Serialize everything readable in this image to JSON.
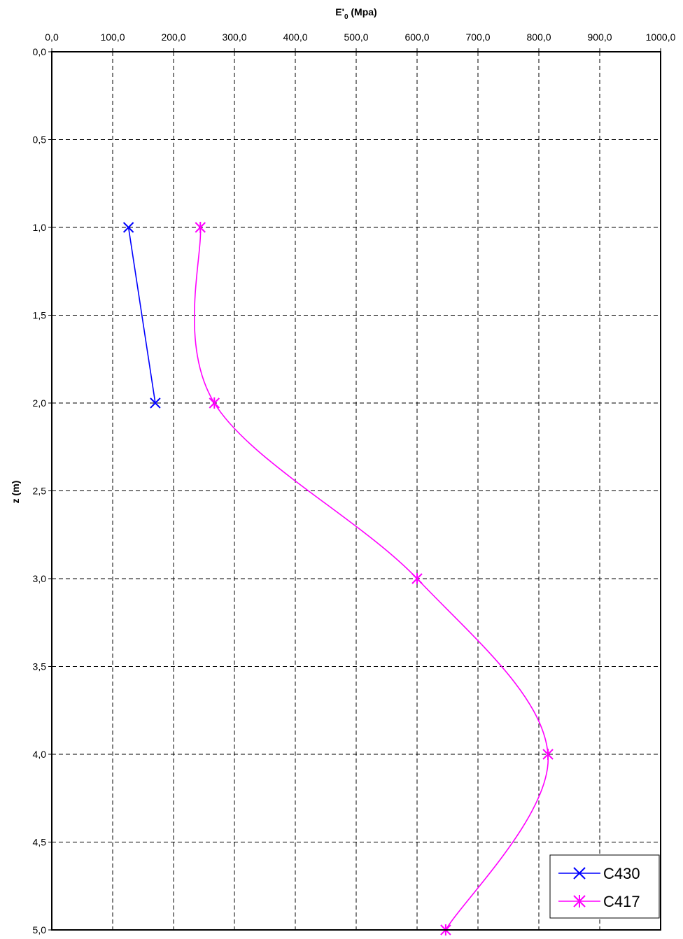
{
  "chart_data": {
    "type": "line",
    "title": "",
    "xlabel": "E'0 (Mpa)",
    "xlabel_main": "E'",
    "xlabel_sub": "0",
    "xlabel_rest": " (Mpa)",
    "ylabel": "z (m)",
    "x_axis_position": "top",
    "y_axis_inverted": true,
    "xlim": [
      0,
      1000
    ],
    "ylim": [
      0,
      5
    ],
    "x_ticks": [
      0,
      100,
      200,
      300,
      400,
      500,
      600,
      700,
      800,
      900,
      1000
    ],
    "x_tick_labels": [
      "0,0",
      "100,0",
      "200,0",
      "300,0",
      "400,0",
      "500,0",
      "600,0",
      "700,0",
      "800,0",
      "900,0",
      "1000,0"
    ],
    "y_ticks": [
      0,
      0.5,
      1,
      1.5,
      2,
      2.5,
      3,
      3.5,
      4,
      4.5,
      5
    ],
    "y_tick_labels": [
      "0,0",
      "0,5",
      "1,0",
      "1,5",
      "2,0",
      "2,5",
      "3,0",
      "3,5",
      "4,0",
      "4,5",
      "5,0"
    ],
    "grid": true,
    "grid_style": "dashed",
    "legend_position": "bottom-right",
    "series": [
      {
        "name": "C430",
        "color": "#0000ff",
        "marker": "x",
        "smooth": false,
        "points": [
          [
            126,
            1.0
          ],
          [
            170,
            2.0
          ]
        ]
      },
      {
        "name": "C417",
        "color": "#ff00ff",
        "marker": "asterisk",
        "smooth": true,
        "points": [
          [
            244,
            1.0
          ],
          [
            267,
            2.0
          ],
          [
            600,
            3.0
          ],
          [
            815,
            4.0
          ],
          [
            647,
            5.0
          ]
        ]
      }
    ]
  }
}
